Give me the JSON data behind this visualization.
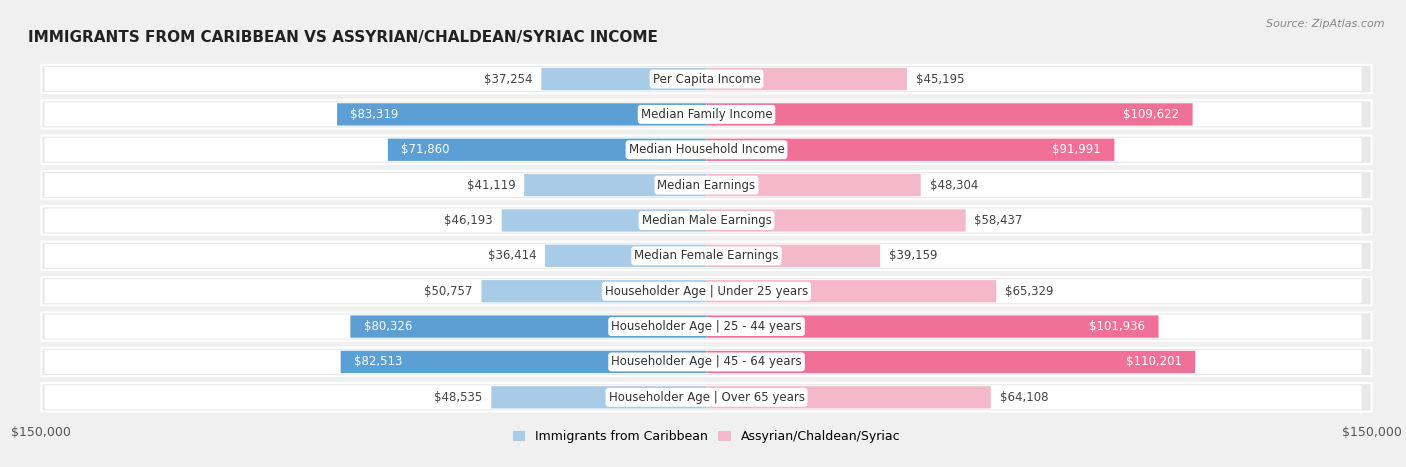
{
  "title": "IMMIGRANTS FROM CARIBBEAN VS ASSYRIAN/CHALDEAN/SYRIAC INCOME",
  "source": "Source: ZipAtlas.com",
  "categories": [
    "Per Capita Income",
    "Median Family Income",
    "Median Household Income",
    "Median Earnings",
    "Median Male Earnings",
    "Median Female Earnings",
    "Householder Age | Under 25 years",
    "Householder Age | 25 - 44 years",
    "Householder Age | 45 - 64 years",
    "Householder Age | Over 65 years"
  ],
  "caribbean_values": [
    37254,
    83319,
    71860,
    41119,
    46193,
    36414,
    50757,
    80326,
    82513,
    48535
  ],
  "assyrian_values": [
    45195,
    109622,
    91991,
    48304,
    58437,
    39159,
    65329,
    101936,
    110201,
    64108
  ],
  "caribbean_color_light": "#a8cce8",
  "caribbean_color_dark": "#5b9fd4",
  "assyrian_color_light": "#f5b8cb",
  "assyrian_color_dark": "#f07098",
  "background_color": "#f0f0f0",
  "row_bg_color": "#e8e8e8",
  "bar_bg_color": "#ffffff",
  "max_value": 150000,
  "title_fontsize": 11,
  "value_fontsize": 8.5,
  "cat_fontsize": 8.5,
  "legend_label_caribbean": "Immigrants from Caribbean",
  "legend_label_assyrian": "Assyrian/Chaldean/Syriac",
  "carib_inside_threshold": 70000,
  "assyr_inside_threshold": 85000
}
